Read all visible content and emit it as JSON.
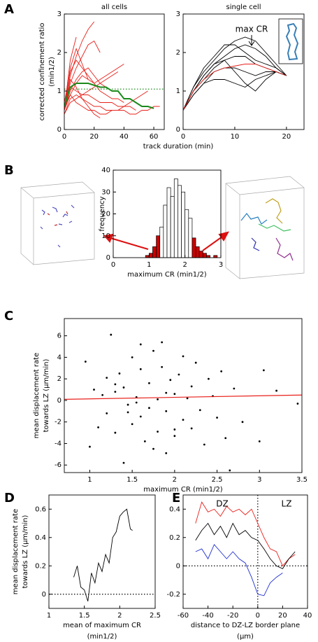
{
  "panel_labels": [
    "A",
    "B",
    "C",
    "D",
    "E"
  ],
  "chart_data": [
    {
      "type": "line",
      "title": "all cells",
      "xlabel": [
        "track duration (min)"
      ],
      "ylabel": [
        "corrected confinement ratio",
        "(min1/2)"
      ],
      "x": [
        0,
        4,
        8,
        12,
        16,
        20,
        24,
        28,
        32,
        36,
        40,
        44,
        48,
        52,
        56,
        60,
        64
      ],
      "xlim": [
        0,
        67
      ],
      "xticks": [
        0,
        20,
        40,
        60
      ],
      "ylim": [
        0,
        3
      ],
      "yticks": [
        0,
        1,
        2,
        3
      ],
      "series": [
        {
          "color": "#e8201a",
          "values": [
            0.5,
            1.4,
            1.9,
            2.3,
            2.6,
            2.8,
            null,
            null,
            null,
            null,
            null,
            null,
            null,
            null,
            null,
            null,
            null
          ]
        },
        {
          "color": "#e8201a",
          "values": [
            0.6,
            1.2,
            1.6,
            1.9,
            2.2,
            2.3,
            2.0,
            null,
            null,
            null,
            null,
            null,
            null,
            null,
            null,
            null,
            null
          ]
        },
        {
          "color": "#e8201a",
          "values": [
            0.5,
            1.0,
            1.3,
            1.5,
            1.6,
            1.4,
            1.2,
            1.1,
            1.0,
            null,
            null,
            null,
            null,
            null,
            null,
            null,
            null
          ]
        },
        {
          "color": "#e8201a",
          "values": [
            0.7,
            1.5,
            1.8,
            1.6,
            1.4,
            1.2,
            1.0,
            0.9,
            0.8,
            0.8,
            0.7,
            null,
            null,
            null,
            null,
            null,
            null
          ]
        },
        {
          "color": "#e8201a",
          "values": [
            0.4,
            0.8,
            0.9,
            0.8,
            0.7,
            0.6,
            0.6,
            0.5,
            0.5,
            0.5,
            0.6,
            0.6,
            0.5,
            null,
            null,
            null,
            null
          ]
        },
        {
          "color": "#e8201a",
          "values": [
            0.5,
            1.1,
            1.0,
            0.9,
            1.0,
            1.1,
            1.2,
            1.3,
            1.4,
            1.5,
            null,
            null,
            null,
            null,
            null,
            null,
            null
          ]
        },
        {
          "color": "#e8201a",
          "values": [
            0.6,
            0.9,
            0.7,
            0.6,
            0.5,
            0.5,
            0.4,
            0.4,
            0.5,
            0.5,
            0.5,
            0.4,
            0.4,
            0.5,
            0.5,
            0.6,
            0.6
          ]
        },
        {
          "color": "#e8201a",
          "values": [
            0.5,
            1.6,
            2.1,
            1.7,
            1.3,
            null,
            null,
            null,
            null,
            null,
            null,
            null,
            null,
            null,
            null,
            null,
            null
          ]
        },
        {
          "color": "#e8201a",
          "values": [
            0.4,
            0.7,
            0.8,
            0.9,
            0.9,
            0.8,
            0.7,
            0.7,
            0.7,
            0.6,
            0.6,
            0.7,
            0.8,
            0.9,
            1.0,
            null,
            null
          ]
        },
        {
          "color": "#e8201a",
          "values": [
            0.6,
            1.3,
            1.1,
            0.8,
            0.6,
            0.4,
            0.3,
            null,
            null,
            null,
            null,
            null,
            null,
            null,
            null,
            null,
            null
          ]
        },
        {
          "color": "#e8201a",
          "values": [
            0.5,
            1.8,
            2.4,
            null,
            null,
            null,
            null,
            null,
            null,
            null,
            null,
            null,
            null,
            null,
            null,
            null,
            null
          ]
        },
        {
          "color": "#e8201a",
          "values": [
            0.5,
            0.9,
            1.2,
            1.4,
            1.3,
            1.2,
            1.3,
            1.4,
            1.5,
            1.6,
            1.7,
            null,
            null,
            null,
            null,
            null,
            null
          ]
        },
        {
          "color": "#1a8a1a",
          "values": [
            0.6,
            1.1,
            1.2,
            1.2,
            1.2,
            1.15,
            1.1,
            1.1,
            1.0,
            1.0,
            0.8,
            0.8,
            0.7,
            0.6,
            0.6,
            0.55,
            null
          ]
        }
      ],
      "reference_lines": [
        {
          "axis": "y",
          "value": 1.05,
          "color": "#1a8a1a"
        }
      ]
    },
    {
      "type": "line",
      "title": "single cell",
      "annotations": [
        "max CR"
      ],
      "x": [
        0,
        2,
        4,
        6,
        8,
        10,
        12,
        14,
        16,
        18,
        20
      ],
      "xlim": [
        0,
        23.4
      ],
      "xticks": [
        0,
        10,
        20
      ],
      "ylim": [
        0,
        3
      ],
      "yticks": [
        0,
        1,
        2,
        3
      ],
      "series": [
        {
          "color": "#000000",
          "values": [
            0.5,
            1.1,
            1.5,
            1.8,
            2.1,
            2.3,
            2.4,
            2.3,
            2.0,
            1.7,
            1.4
          ]
        },
        {
          "color": "#000000",
          "values": [
            0.5,
            1.0,
            1.4,
            1.7,
            1.9,
            2.1,
            2.2,
            2.1,
            1.9,
            1.6,
            1.4
          ]
        },
        {
          "color": "#000000",
          "values": [
            0.5,
            1.0,
            1.3,
            1.6,
            1.8,
            1.9,
            1.9,
            1.7,
            1.6,
            1.5,
            1.4
          ]
        },
        {
          "color": "#000000",
          "values": [
            0.5,
            0.9,
            1.2,
            1.5,
            1.6,
            1.6,
            1.5,
            1.4,
            1.5,
            1.5,
            1.4
          ]
        },
        {
          "color": "#000000",
          "values": [
            0.5,
            0.9,
            1.2,
            1.3,
            1.3,
            1.2,
            1.1,
            1.3,
            1.4,
            1.5,
            1.4
          ]
        },
        {
          "color": "#000000",
          "values": [
            0.5,
            1.1,
            1.6,
            1.9,
            2.2,
            2.2,
            2.0,
            1.8,
            1.7,
            1.6,
            1.4
          ]
        },
        {
          "color": "#000000",
          "values": [
            0.5,
            1.0,
            1.4,
            1.7,
            1.8,
            1.5,
            1.2,
            1.0,
            1.3,
            1.5,
            1.4
          ]
        },
        {
          "color": "#e8201a",
          "values": [
            0.5,
            1.0,
            1.3,
            1.5,
            1.6,
            1.65,
            1.7,
            1.7,
            1.6,
            1.5,
            1.4
          ]
        }
      ]
    },
    {
      "type": "histogram",
      "xlabel": [
        "maximum CR (min1/2)"
      ],
      "ylabel": [
        "frequency"
      ],
      "bins": [
        0.9,
        1.0,
        1.1,
        1.2,
        1.3,
        1.4,
        1.5,
        1.6,
        1.7,
        1.8,
        1.9,
        2.0,
        2.1,
        2.2,
        2.3,
        2.4,
        2.5,
        2.6,
        2.7,
        2.8,
        2.9
      ],
      "values": [
        1,
        2,
        5,
        10,
        14,
        24,
        32,
        28,
        36,
        33,
        30,
        22,
        18,
        9,
        5,
        3,
        2,
        1,
        0,
        1
      ],
      "colors": [
        "#cc0000",
        "#cc0000",
        "#cc0000",
        "#cc0000",
        "#ffffff",
        "#ffffff",
        "#ffffff",
        "#ffffff",
        "#ffffff",
        "#ffffff",
        "#ffffff",
        "#ffffff",
        "#ffffff",
        "#cc0000",
        "#cc0000",
        "#cc0000",
        "#cc0000",
        "#cc0000",
        "#cc0000",
        "#cc0000"
      ],
      "xlim": [
        0,
        3
      ],
      "xticks": [
        0,
        1,
        2,
        3
      ],
      "ylim": [
        0,
        40
      ],
      "yticks": [
        0,
        10,
        20,
        30,
        40
      ]
    },
    {
      "type": "scatter",
      "xlabel": [
        "maximum CR (min1/2)"
      ],
      "ylabel": [
        "mean displacement rate",
        "towards LZ (µm/min)"
      ],
      "x": [
        0.95,
        1.0,
        1.05,
        1.1,
        1.15,
        1.2,
        1.2,
        1.25,
        1.3,
        1.3,
        1.35,
        1.4,
        1.4,
        1.45,
        1.5,
        1.5,
        1.55,
        1.6,
        1.6,
        1.65,
        1.7,
        1.7,
        1.75,
        1.8,
        1.8,
        1.85,
        1.9,
        1.9,
        1.95,
        2.0,
        2.0,
        2.05,
        2.1,
        2.1,
        2.15,
        2.2,
        2.2,
        2.25,
        2.3,
        2.35,
        2.4,
        2.45,
        2.5,
        2.55,
        2.6,
        2.65,
        2.7,
        2.8,
        3.0,
        3.05,
        3.2,
        3.45,
        1.45,
        1.6,
        1.75,
        1.9,
        2.0,
        1.3,
        1.55,
        1.85
      ],
      "values": [
        3.6,
        -4.3,
        1.0,
        -2.5,
        0.5,
        2.1,
        -1.2,
        6.1,
        -3.0,
        0.8,
        2.5,
        -5.8,
        1.2,
        -0.4,
        4.0,
        -2.2,
        0.3,
        -1.5,
        2.9,
        -3.8,
        1.6,
        -0.7,
        4.6,
        -2.9,
        0.1,
        3.1,
        -1.0,
        -4.9,
        1.9,
        0.6,
        -3.3,
        2.4,
        -1.8,
        4.1,
        0.2,
        -2.6,
        1.3,
        3.5,
        -0.9,
        -4.1,
        2.0,
        0.4,
        -1.6,
        2.7,
        -3.5,
        -6.5,
        1.1,
        -2.0,
        -3.8,
        2.8,
        0.9,
        -0.3,
        -1.1,
        5.2,
        -4.5,
        0.7,
        -2.7,
        1.5,
        -0.2,
        5.4
      ],
      "color": "#000000",
      "fit": {
        "x": [
          0.7,
          3.5
        ],
        "values": [
          0.1,
          0.5
        ],
        "color": "#e8201a"
      },
      "xlim": [
        0.7,
        3.5
      ],
      "xticks": [
        1,
        1.5,
        2,
        2.5,
        3,
        3.5
      ],
      "ylim": [
        -6.7,
        7.6
      ],
      "yticks": [
        -6,
        -4,
        -2,
        0,
        2,
        4,
        6
      ]
    },
    {
      "type": "line",
      "xlabel": [
        "mean of maximum CR",
        "(min1/2)"
      ],
      "ylabel": [
        "mean displacement rate",
        "towards LZ (µm/min)"
      ],
      "x": [
        1.35,
        1.4,
        1.45,
        1.5,
        1.55,
        1.6,
        1.65,
        1.7,
        1.75,
        1.8,
        1.85,
        1.9,
        1.95,
        2.0,
        2.05,
        2.1,
        2.15,
        2.18
      ],
      "series": [
        {
          "color": "#000000",
          "values": [
            0.12,
            0.2,
            0.05,
            0.03,
            -0.05,
            0.15,
            0.08,
            0.22,
            0.16,
            0.28,
            0.22,
            0.4,
            0.44,
            0.55,
            0.58,
            0.6,
            0.46,
            0.45
          ]
        }
      ],
      "reference_lines": [
        {
          "axis": "y",
          "value": 0,
          "color": "#000000"
        }
      ],
      "xlim": [
        1,
        2.5
      ],
      "xticks": [
        1,
        1.5,
        2,
        2.5
      ],
      "ylim": [
        -0.1,
        0.7
      ],
      "yticks": [
        0,
        0.2,
        0.4,
        0.6
      ]
    },
    {
      "type": "line",
      "xlabel": [
        "distance to DZ-LZ border plane",
        "(µm)"
      ],
      "annotations": [
        "DZ",
        "LZ"
      ],
      "x": [
        -50,
        -45,
        -40,
        -35,
        -30,
        -25,
        -20,
        -15,
        -10,
        -5,
        0,
        5,
        10,
        15,
        20,
        25,
        30
      ],
      "series": [
        {
          "color": "#e8201a",
          "values": [
            0.3,
            0.45,
            0.38,
            0.4,
            0.35,
            0.42,
            0.38,
            0.4,
            0.36,
            0.4,
            0.3,
            0.2,
            0.12,
            0.1,
            0.0,
            0.05,
            0.08
          ]
        },
        {
          "color": "#000000",
          "values": [
            0.18,
            0.25,
            0.3,
            0.22,
            0.28,
            0.2,
            0.3,
            0.22,
            0.25,
            0.2,
            0.18,
            0.12,
            0.05,
            0.0,
            -0.02,
            0.05,
            0.1
          ]
        },
        {
          "color": "#1f2fd0",
          "values": [
            0.1,
            0.12,
            0.05,
            0.15,
            0.1,
            0.05,
            0.1,
            0.05,
            0.02,
            -0.08,
            -0.2,
            -0.21,
            -0.12,
            -0.08,
            -0.05,
            null,
            null
          ]
        }
      ],
      "reference_lines": [
        {
          "axis": "y",
          "value": 0,
          "color": "#000000"
        },
        {
          "axis": "x",
          "value": 0,
          "color": "#000000"
        }
      ],
      "xlim": [
        -60,
        40
      ],
      "xticks": [
        -60,
        -40,
        -20,
        0,
        20,
        40
      ],
      "ylim": [
        -0.3,
        0.5
      ],
      "yticks": [
        -0.2,
        0,
        0.2,
        0.4
      ]
    }
  ]
}
